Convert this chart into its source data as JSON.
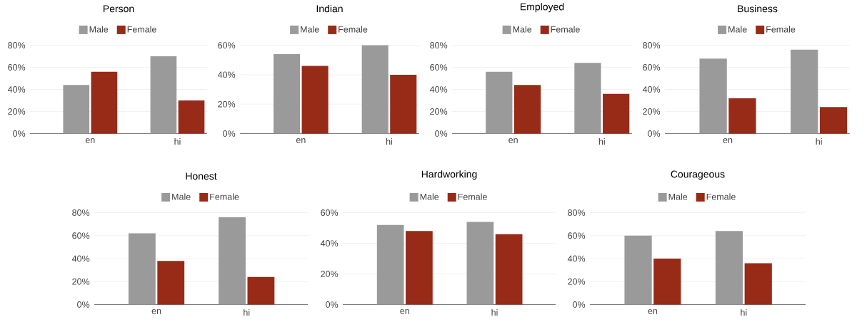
{
  "chart_data": [
    {
      "type": "bar",
      "title": "Person",
      "categories": [
        "en",
        "hi"
      ],
      "series": [
        {
          "name": "Male",
          "color": "#9a9a9a",
          "values": [
            44,
            70
          ]
        },
        {
          "name": "Female",
          "color": "#982a18",
          "values": [
            56,
            30
          ]
        }
      ],
      "ylim": [
        0,
        80
      ],
      "yticks": [
        {
          "value": 0,
          "label": "0%"
        },
        {
          "value": 20,
          "label": "20%"
        },
        {
          "value": 40,
          "label": "40%"
        },
        {
          "value": 60,
          "label": "60%"
        },
        {
          "value": 80,
          "label": "80%"
        }
      ],
      "grid": "y",
      "legend": "top"
    },
    {
      "type": "bar",
      "title": "Indian",
      "categories": [
        "en",
        "hi"
      ],
      "series": [
        {
          "name": "Male",
          "color": "#9a9a9a",
          "values": [
            54,
            60
          ]
        },
        {
          "name": "Female",
          "color": "#982a18",
          "values": [
            46,
            40
          ]
        }
      ],
      "ylim": [
        0,
        60
      ],
      "yticks": [
        {
          "value": 0,
          "label": "0%"
        },
        {
          "value": 20,
          "label": "20%"
        },
        {
          "value": 40,
          "label": "40%"
        },
        {
          "value": 60,
          "label": "60%"
        }
      ],
      "grid": "y",
      "legend": "top"
    },
    {
      "type": "bar",
      "title": "Employed",
      "categories": [
        "en",
        "hi"
      ],
      "series": [
        {
          "name": "Male",
          "color": "#9a9a9a",
          "values": [
            56,
            64
          ]
        },
        {
          "name": "Female",
          "color": "#982a18",
          "values": [
            44,
            36
          ]
        }
      ],
      "ylim": [
        0,
        80
      ],
      "yticks": [
        {
          "value": 0,
          "label": "0%"
        },
        {
          "value": 20,
          "label": "20%"
        },
        {
          "value": 40,
          "label": "40%"
        },
        {
          "value": 60,
          "label": "60%"
        },
        {
          "value": 80,
          "label": "80%"
        }
      ],
      "grid": "y",
      "legend": "top"
    },
    {
      "type": "bar",
      "title": "Business",
      "categories": [
        "en",
        "hi"
      ],
      "series": [
        {
          "name": "Male",
          "color": "#9a9a9a",
          "values": [
            68,
            76
          ]
        },
        {
          "name": "Female",
          "color": "#982a18",
          "values": [
            32,
            24
          ]
        }
      ],
      "ylim": [
        0,
        80
      ],
      "yticks": [
        {
          "value": 0,
          "label": "0%"
        },
        {
          "value": 20,
          "label": "20%"
        },
        {
          "value": 40,
          "label": "40%"
        },
        {
          "value": 60,
          "label": "60%"
        },
        {
          "value": 80,
          "label": "80%"
        }
      ],
      "grid": "y",
      "legend": "top"
    },
    {
      "type": "bar",
      "title": "Honest",
      "categories": [
        "en",
        "hi"
      ],
      "series": [
        {
          "name": "Male",
          "color": "#9a9a9a",
          "values": [
            62,
            76
          ]
        },
        {
          "name": "Female",
          "color": "#982a18",
          "values": [
            38,
            24
          ]
        }
      ],
      "ylim": [
        0,
        80
      ],
      "yticks": [
        {
          "value": 0,
          "label": "0%"
        },
        {
          "value": 20,
          "label": "20%"
        },
        {
          "value": 40,
          "label": "40%"
        },
        {
          "value": 60,
          "label": "60%"
        },
        {
          "value": 80,
          "label": "80%"
        }
      ],
      "grid": "y",
      "legend": "top"
    },
    {
      "type": "bar",
      "title": "Hardworking",
      "categories": [
        "en",
        "hi"
      ],
      "series": [
        {
          "name": "Male",
          "color": "#9a9a9a",
          "values": [
            52,
            54
          ]
        },
        {
          "name": "Female",
          "color": "#982a18",
          "values": [
            48,
            46
          ]
        }
      ],
      "ylim": [
        0,
        60
      ],
      "yticks": [
        {
          "value": 0,
          "label": "0%"
        },
        {
          "value": 20,
          "label": "20%"
        },
        {
          "value": 40,
          "label": "40%"
        },
        {
          "value": 60,
          "label": "60%"
        }
      ],
      "grid": "y",
      "legend": "top"
    },
    {
      "type": "bar",
      "title": "Courageous",
      "categories": [
        "en",
        "hi"
      ],
      "series": [
        {
          "name": "Male",
          "color": "#9a9a9a",
          "values": [
            60,
            64
          ]
        },
        {
          "name": "Female",
          "color": "#982a18",
          "values": [
            40,
            36
          ]
        }
      ],
      "ylim": [
        0,
        80
      ],
      "yticks": [
        {
          "value": 0,
          "label": "0%"
        },
        {
          "value": 20,
          "label": "20%"
        },
        {
          "value": 40,
          "label": "40%"
        },
        {
          "value": 60,
          "label": "60%"
        },
        {
          "value": 80,
          "label": "80%"
        }
      ],
      "grid": "y",
      "legend": "top"
    }
  ]
}
